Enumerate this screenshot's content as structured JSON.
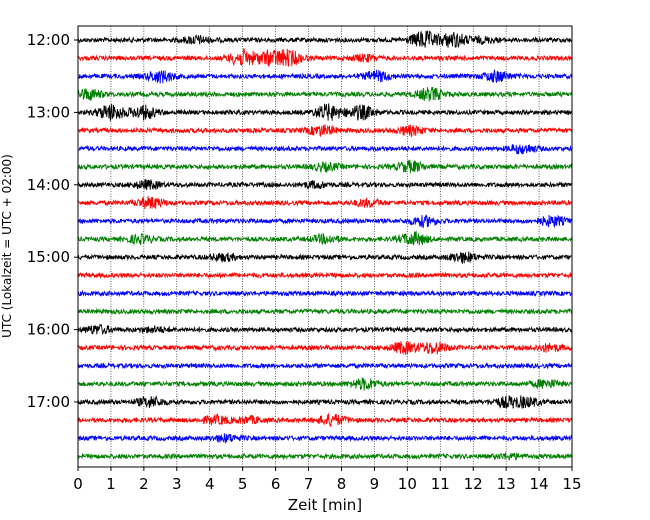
{
  "chart_data": {
    "type": "line",
    "title": "",
    "xlabel": "Zeit  [min]",
    "ylabel": "UTC (Lokalzeit = UTC + 02:00)",
    "xlim": [
      0,
      15
    ],
    "x_ticks": [
      "0",
      "1",
      "2",
      "3",
      "4",
      "5",
      "6",
      "7",
      "8",
      "9",
      "10",
      "11",
      "12",
      "13",
      "14",
      "15"
    ],
    "y_ticks": [
      "12:00",
      "13:00",
      "14:00",
      "15:00",
      "16:00",
      "17:00"
    ],
    "y_tick_rows": [
      0,
      4,
      8,
      12,
      16,
      20
    ],
    "grid": "vertical dotted lines at every minute",
    "row_interval_min": 15,
    "trace_colors": [
      "#000000",
      "#ff0000",
      "#0000ff",
      "#008000"
    ],
    "traces": [
      {
        "start": "12:00",
        "bursts": [
          {
            "t": 3.6,
            "a": 1.5
          },
          {
            "t": 10.5,
            "a": 3.5
          },
          {
            "t": 11.4,
            "a": 3.0
          },
          {
            "t": 12.3,
            "a": 1.0
          }
        ]
      },
      {
        "start": "12:15",
        "bursts": [
          {
            "t": 5.0,
            "a": 3.2
          },
          {
            "t": 5.8,
            "a": 2.6
          },
          {
            "t": 6.4,
            "a": 3.0
          },
          {
            "t": 8.7,
            "a": 1.2
          }
        ]
      },
      {
        "start": "12:30",
        "bursts": [
          {
            "t": 2.5,
            "a": 2.4
          },
          {
            "t": 9.1,
            "a": 2.0
          },
          {
            "t": 12.7,
            "a": 2.2
          }
        ]
      },
      {
        "start": "12:45",
        "bursts": [
          {
            "t": 0.3,
            "a": 2.2
          },
          {
            "t": 10.7,
            "a": 2.6
          }
        ]
      },
      {
        "start": "13:00",
        "bursts": [
          {
            "t": 1.0,
            "a": 3.2
          },
          {
            "t": 2.0,
            "a": 2.6
          },
          {
            "t": 7.6,
            "a": 3.2
          },
          {
            "t": 8.6,
            "a": 2.8
          }
        ]
      },
      {
        "start": "13:15",
        "bursts": [
          {
            "t": 7.4,
            "a": 2.0
          },
          {
            "t": 10.1,
            "a": 1.8
          }
        ]
      },
      {
        "start": "13:30",
        "bursts": [
          {
            "t": 13.5,
            "a": 1.8
          }
        ]
      },
      {
        "start": "13:45",
        "bursts": [
          {
            "t": 7.5,
            "a": 1.5
          },
          {
            "t": 10.1,
            "a": 2.2
          }
        ]
      },
      {
        "start": "14:00",
        "bursts": [
          {
            "t": 2.1,
            "a": 1.6
          },
          {
            "t": 7.2,
            "a": 1.2
          }
        ]
      },
      {
        "start": "14:15",
        "bursts": [
          {
            "t": 2.2,
            "a": 2.2
          },
          {
            "t": 8.8,
            "a": 1.4
          }
        ]
      },
      {
        "start": "14:30",
        "bursts": [
          {
            "t": 10.5,
            "a": 2.0
          },
          {
            "t": 14.4,
            "a": 2.0
          }
        ]
      },
      {
        "start": "14:45",
        "bursts": [
          {
            "t": 1.9,
            "a": 1.6
          },
          {
            "t": 7.5,
            "a": 1.6
          },
          {
            "t": 10.2,
            "a": 2.6
          }
        ]
      },
      {
        "start": "15:00",
        "bursts": [
          {
            "t": 4.4,
            "a": 1.4
          },
          {
            "t": 11.7,
            "a": 2.0
          }
        ]
      },
      {
        "start": "15:15",
        "bursts": []
      },
      {
        "start": "15:30",
        "bursts": []
      },
      {
        "start": "15:45",
        "bursts": []
      },
      {
        "start": "16:00",
        "bursts": [
          {
            "t": 0.6,
            "a": 1.6
          },
          {
            "t": 2.3,
            "a": 1.0
          }
        ]
      },
      {
        "start": "16:15",
        "bursts": [
          {
            "t": 9.9,
            "a": 2.2
          },
          {
            "t": 10.8,
            "a": 2.4
          },
          {
            "t": 14.3,
            "a": 1.4
          }
        ]
      },
      {
        "start": "16:30",
        "bursts": []
      },
      {
        "start": "16:45",
        "bursts": [
          {
            "t": 8.7,
            "a": 2.2
          },
          {
            "t": 14.2,
            "a": 1.6
          }
        ]
      },
      {
        "start": "17:00",
        "bursts": [
          {
            "t": 2.2,
            "a": 2.0
          },
          {
            "t": 13.0,
            "a": 1.8
          },
          {
            "t": 13.6,
            "a": 1.8
          }
        ]
      },
      {
        "start": "17:15",
        "bursts": [
          {
            "t": 4.2,
            "a": 1.6
          },
          {
            "t": 5.2,
            "a": 1.2
          },
          {
            "t": 7.7,
            "a": 2.2
          }
        ]
      },
      {
        "start": "17:30",
        "bursts": [
          {
            "t": 4.5,
            "a": 1.4
          }
        ]
      },
      {
        "start": "17:45",
        "bursts": [
          {
            "t": 13.1,
            "a": 1.0
          }
        ]
      }
    ]
  }
}
